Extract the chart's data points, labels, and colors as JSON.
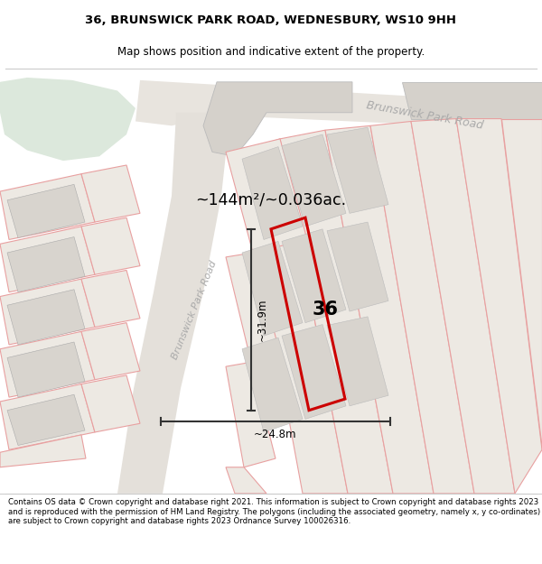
{
  "title_line1": "36, BRUNSWICK PARK ROAD, WEDNESBURY, WS10 9HH",
  "title_line2": "Map shows position and indicative extent of the property.",
  "area_text": "~144m²/~0.036ac.",
  "number_label": "36",
  "road_label_top": "Brunswick Park Road",
  "road_label_left": "Brunswick Park Road",
  "dim_vertical": "~31.9m",
  "dim_horizontal": "~24.8m",
  "footer_text": "Contains OS data © Crown copyright and database right 2021. This information is subject to Crown copyright and database rights 2023 and is reproduced with the permission of HM Land Registry. The polygons (including the associated geometry, namely x, y co-ordinates) are subject to Crown copyright and database rights 2023 Ordnance Survey 100026316.",
  "map_bg": "#f7f5f2",
  "plot_outline_color": "#cc0000",
  "lot_fill": "#ede9e3",
  "lot_edge": "#e8a0a0",
  "road_fill": "#e0ddd8",
  "green_fill": "#dce8dc",
  "building_fill": "#d8d4ce",
  "building_edge": "#aaaaaa",
  "dim_line_color": "#333333"
}
